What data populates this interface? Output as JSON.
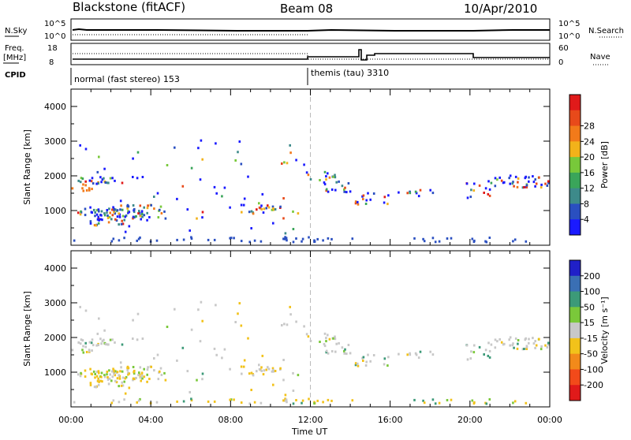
{
  "header": {
    "title": "Blackstone (fitACF)",
    "beam": "Beam 08",
    "date": "10/Apr/2010"
  },
  "top_panel": {
    "left_label": "N.Sky",
    "right_label": "N.Search",
    "tick_top_left": "10^5",
    "tick_bottom_left": "10^0",
    "tick_top_right": "10^5",
    "tick_bottom_right": "10^0"
  },
  "freq_panel": {
    "left_label_1": "Freq.",
    "left_label_2": "[MHz]",
    "right_label": "Nave",
    "tick_top_left": "18",
    "tick_bottom_left": "8",
    "tick_top_right": "60",
    "tick_bottom_right": "0"
  },
  "cpid": {
    "label": "CPID",
    "mode1": "normal (fast stereo) 153",
    "mode2": "themis (tau) 3310"
  },
  "chart_data": [
    {
      "type": "heatmap",
      "name": "Power",
      "ylabel": "Slant Range [km]",
      "yticks": [
        "1000",
        "2000",
        "3000",
        "4000"
      ],
      "ylim": [
        0,
        4500
      ],
      "colorbar": {
        "label": "Power [dB]",
        "ticks": [
          "4",
          "8",
          "12",
          "16",
          "20",
          "24",
          "28"
        ],
        "colors": [
          "#1a1aff",
          "#2a4fc0",
          "#3d8a8a",
          "#3aa55a",
          "#78c83a",
          "#f2b21a",
          "#f27a1a",
          "#e84a1a",
          "#e01a1a"
        ]
      }
    },
    {
      "type": "heatmap",
      "name": "Velocity",
      "ylabel": "Slant Range [km]",
      "xlabel": "Time UT",
      "yticks": [
        "1000",
        "2000",
        "3000",
        "4000"
      ],
      "ylim": [
        0,
        4500
      ],
      "xticks": [
        "00:00",
        "04:00",
        "08:00",
        "12:00",
        "16:00",
        "20:00",
        "00:00"
      ],
      "colorbar": {
        "label": "Velocity [m s⁻¹]",
        "ticks": [
          "200",
          "100",
          "50",
          "15",
          "-15",
          "-50",
          "-100",
          "-200"
        ],
        "colors": [
          "#2020c8",
          "#3a6fb4",
          "#3c9a78",
          "#7ac83a",
          "#c8c8c8",
          "#f2c21a",
          "#f28a1a",
          "#f24a1a",
          "#e01a1a"
        ]
      }
    }
  ]
}
